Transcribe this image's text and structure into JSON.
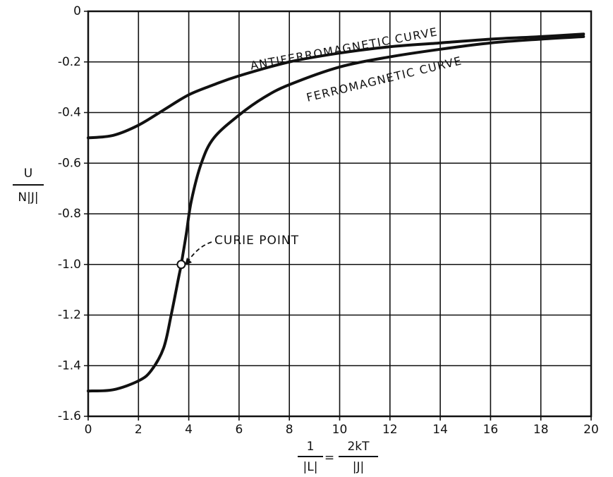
{
  "chart_data": {
    "type": "line",
    "ylabel": {
      "numerator": "U",
      "denominator": "N|J|"
    },
    "xlabel": {
      "left_numerator": "1",
      "left_denominator": "|L|",
      "equals": "=",
      "right_numerator": "2kT",
      "right_denominator": "|J|"
    },
    "xlim": [
      0,
      20
    ],
    "xticks": [
      0,
      2,
      4,
      6,
      8,
      10,
      12,
      14,
      16,
      18,
      20
    ],
    "ylim": [
      -1.6,
      0
    ],
    "yticks": [
      0,
      -0.2,
      -0.4,
      -0.6,
      -0.8,
      {
        "value": -1,
        "label": "-1.0"
      },
      -1.2,
      -1.4,
      -1.6
    ],
    "grid": true,
    "series": [
      {
        "name": "ANTIFERROMAGNETIC CURVE",
        "color": "#111111",
        "x": [
          0,
          1,
          2,
          3,
          4,
          5,
          6,
          8,
          10,
          12,
          14,
          16,
          18,
          19.7
        ],
        "values": [
          -0.5,
          -0.49,
          -0.45,
          -0.39,
          -0.33,
          -0.29,
          -0.255,
          -0.2,
          -0.165,
          -0.14,
          -0.125,
          -0.11,
          -0.1,
          -0.09
        ]
      },
      {
        "name": "FERROMAGNETIC CURVE",
        "color": "#111111",
        "x": [
          0,
          1,
          2,
          2.5,
          3,
          3.3,
          3.6,
          3.7,
          3.9,
          4.1,
          4.5,
          5,
          6,
          7,
          8,
          10,
          12,
          14,
          16,
          18,
          19.7
        ],
        "values": [
          -1.5,
          -1.495,
          -1.46,
          -1.42,
          -1.33,
          -1.2,
          -1.05,
          -1.0,
          -0.88,
          -0.75,
          -0.6,
          -0.5,
          -0.41,
          -0.34,
          -0.29,
          -0.22,
          -0.18,
          -0.15,
          -0.125,
          -0.11,
          -0.1
        ]
      }
    ],
    "annotation": {
      "text": "CURIE POINT",
      "x": 3.7,
      "y": -1
    }
  }
}
